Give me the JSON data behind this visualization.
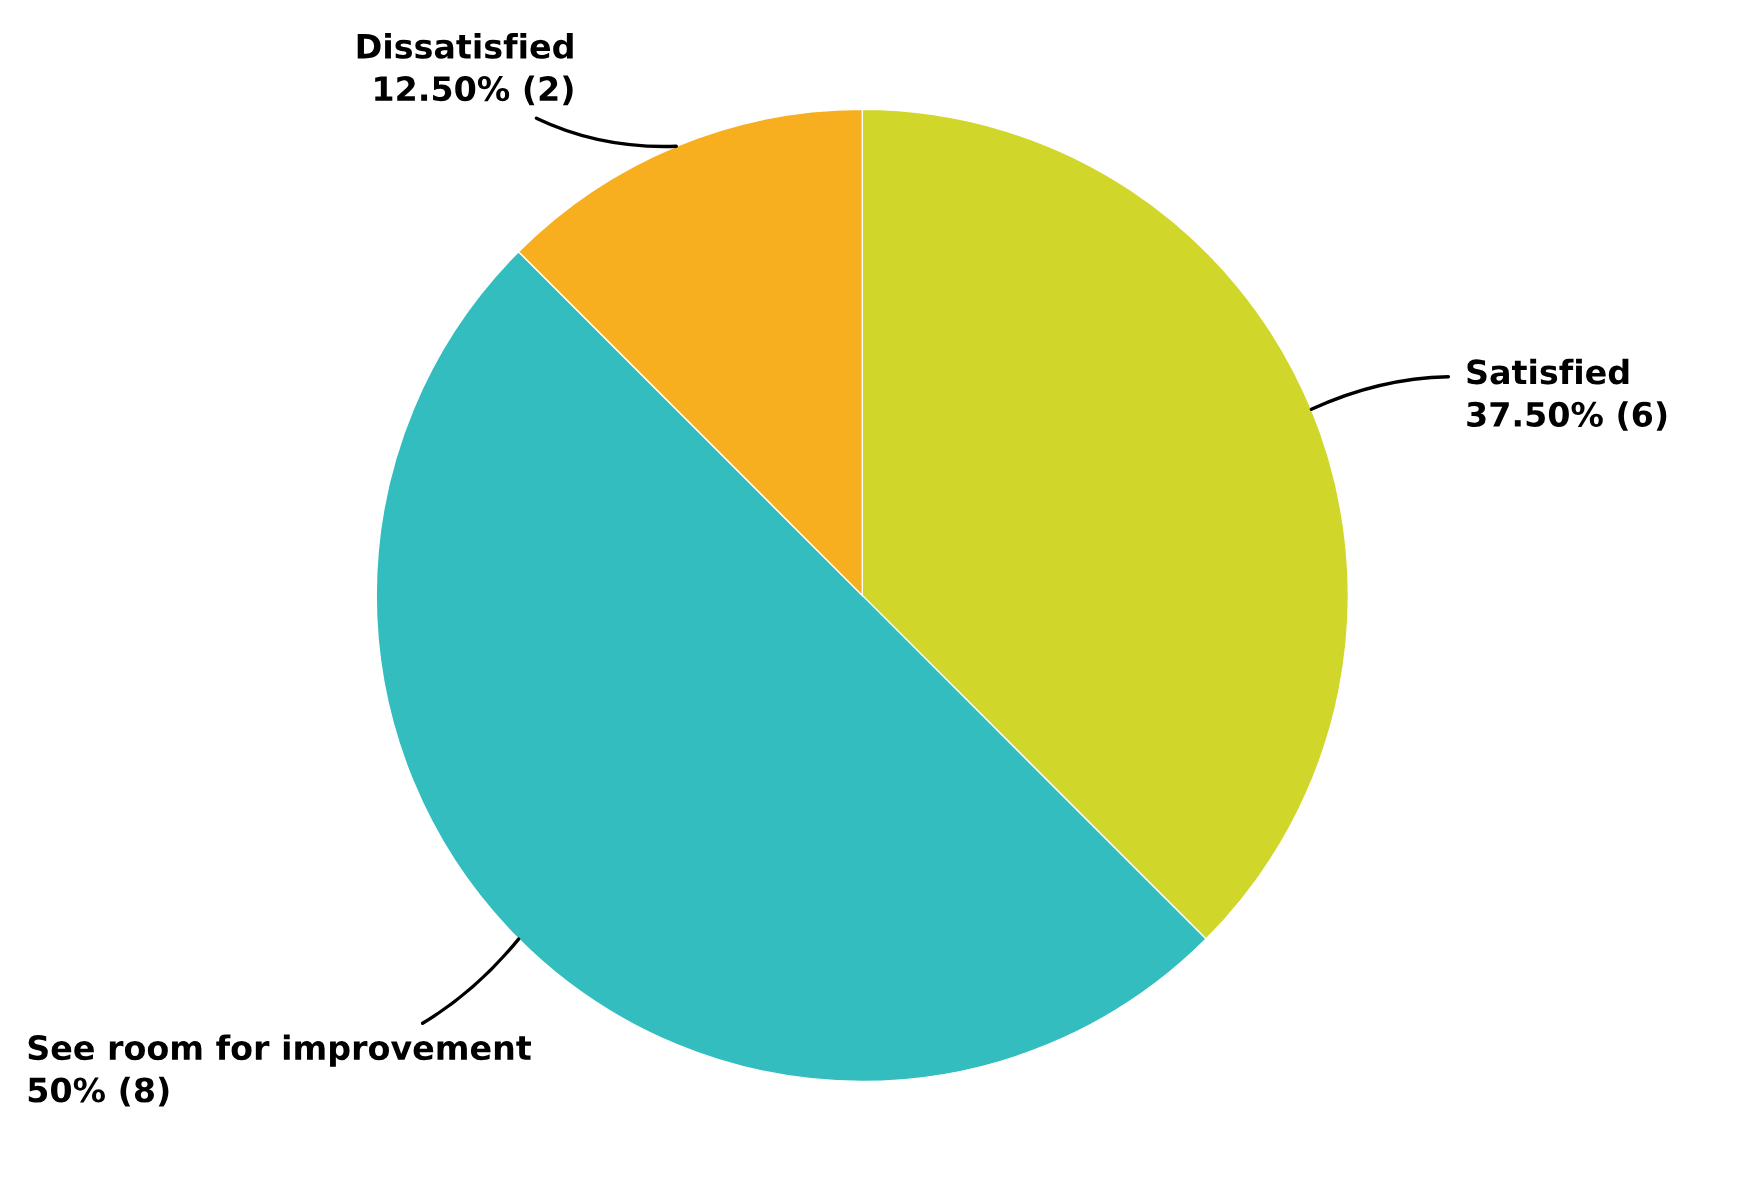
{
  "chart_data": {
    "type": "pie",
    "categories": [
      "Satisfied",
      "See room for improvement",
      "Dissatisfied"
    ],
    "values": [
      6,
      8,
      2
    ],
    "value_labels": [
      "37.50% (6)",
      "50% (8)",
      "12.50% (2)"
    ],
    "colors": [
      "#d0d62a",
      "#33bdbf",
      "#f7ae1f"
    ]
  }
}
